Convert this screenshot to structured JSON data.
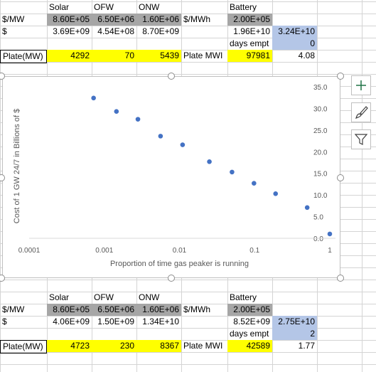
{
  "top_table": {
    "headers": {
      "solar": "Solar",
      "ofw": "OFW",
      "onw": "ONW",
      "battery": "Battery"
    },
    "row_mw": {
      "label": "$/MW",
      "solar": "8.60E+05",
      "ofw": "6.50E+06",
      "onw": "1.60E+06",
      "mwh_label": "$/MWh",
      "battery": "2.00E+05"
    },
    "row_cost": {
      "label": "$",
      "solar": "3.69E+09",
      "ofw": "4.54E+08",
      "onw": "8.70E+09",
      "battery": "1.96E+10",
      "total": "3.24E+10"
    },
    "row_days": {
      "label": "days empt",
      "value": "0"
    },
    "row_plate": {
      "label": "Plate(MW)",
      "solar": "4292",
      "ofw": "70",
      "onw": "5439",
      "mwh_label": "Plate MWI",
      "battery": "97981",
      "ratio": "4.08"
    }
  },
  "bottom_table": {
    "headers": {
      "solar": "Solar",
      "ofw": "OFW",
      "onw": "ONW",
      "battery": "Battery"
    },
    "row_mw": {
      "label": "$/MW",
      "solar": "8.60E+05",
      "ofw": "6.50E+06",
      "onw": "1.60E+06",
      "mwh_label": "$/MWh",
      "battery": "2.00E+05"
    },
    "row_cost": {
      "label": "$",
      "solar": "4.06E+09",
      "ofw": "1.50E+09",
      "onw": "1.34E+10",
      "battery": "8.52E+09",
      "total": "2.75E+10"
    },
    "row_days": {
      "label": "days empt",
      "value": "2"
    },
    "row_plate": {
      "label": "Plate(MW)",
      "solar": "4723",
      "ofw": "230",
      "onw": "8367",
      "mwh_label": "Plate MWI",
      "battery": "42589",
      "ratio": "1.77"
    }
  },
  "chart_buttons": {
    "elements": "plus-icon",
    "styles": "paintbrush-icon",
    "filters": "funnel-icon"
  },
  "chart_data": {
    "type": "scatter",
    "title": "",
    "xlabel": "Proportion of time gas peaker is running",
    "ylabel": "Cost of 1 GW 24/7 in Billions of $",
    "x_scale": "log",
    "xlim": [
      0.0001,
      1
    ],
    "ylim": [
      0,
      35
    ],
    "x_ticks": [
      "0.0001",
      "0.001",
      "0.01",
      "0.1",
      "1"
    ],
    "y_ticks": [
      "0.0",
      "5.0",
      "10.0",
      "15.0",
      "20.0",
      "25.0",
      "30.0",
      "35.0"
    ],
    "y_axis_position": "right",
    "grid": false,
    "marker_color": "#4472c4",
    "points": [
      {
        "x": 0.00072,
        "y": 32.4
      },
      {
        "x": 0.00145,
        "y": 29.3
      },
      {
        "x": 0.0028,
        "y": 27.5
      },
      {
        "x": 0.0056,
        "y": 23.6
      },
      {
        "x": 0.011,
        "y": 21.6
      },
      {
        "x": 0.025,
        "y": 17.7
      },
      {
        "x": 0.05,
        "y": 15.3
      },
      {
        "x": 0.098,
        "y": 12.7
      },
      {
        "x": 0.19,
        "y": 10.3
      },
      {
        "x": 0.5,
        "y": 7.1
      },
      {
        "x": 1.0,
        "y": 1.0
      }
    ]
  }
}
